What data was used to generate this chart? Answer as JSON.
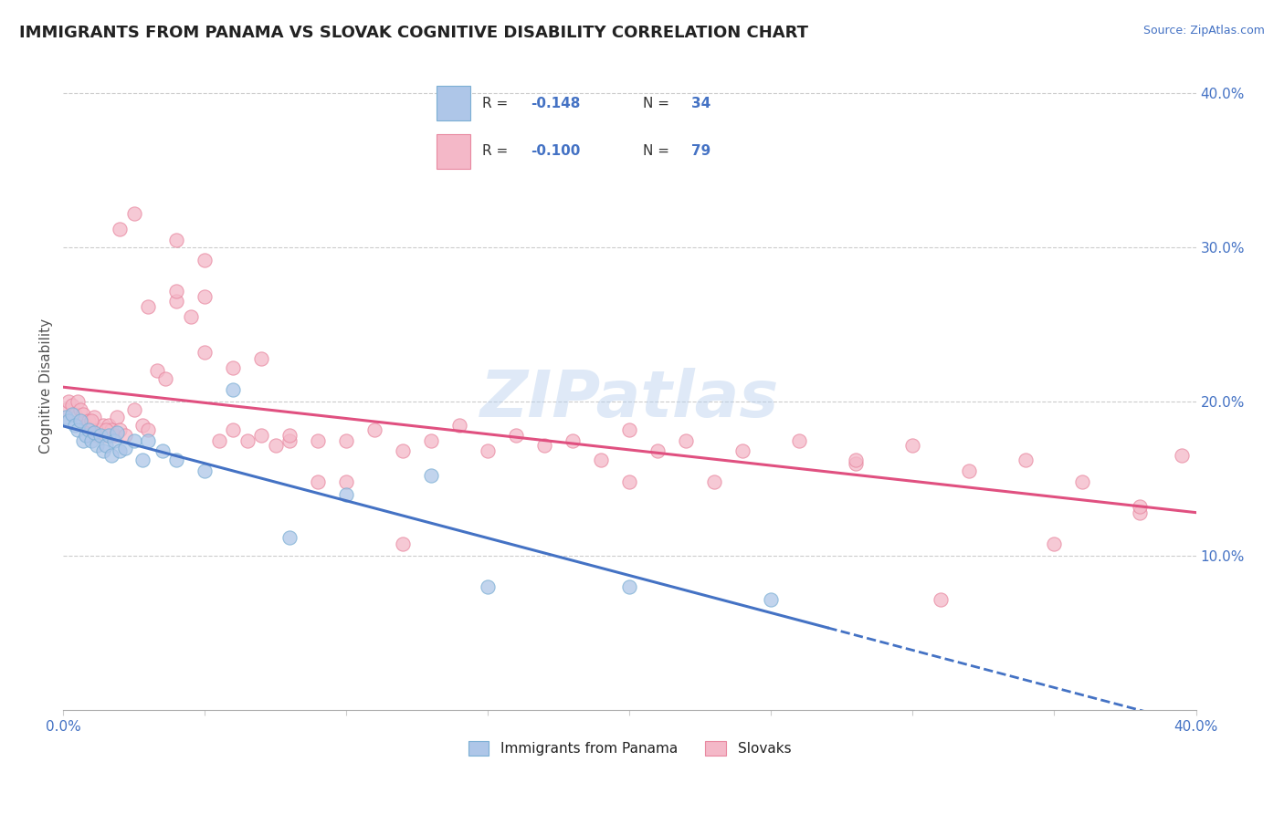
{
  "title": "IMMIGRANTS FROM PANAMA VS SLOVAK COGNITIVE DISABILITY CORRELATION CHART",
  "source": "Source: ZipAtlas.com",
  "ylabel": "Cognitive Disability",
  "xlim": [
    0.0,
    0.4
  ],
  "ylim": [
    0.0,
    0.42
  ],
  "x_tick_positions": [
    0.0,
    0.05,
    0.1,
    0.15,
    0.2,
    0.25,
    0.3,
    0.35,
    0.4
  ],
  "y_ticks_right": [
    0.1,
    0.2,
    0.3,
    0.4
  ],
  "y_tick_labels_right": [
    "10.0%",
    "20.0%",
    "30.0%",
    "40.0%"
  ],
  "r_panama": -0.148,
  "n_panama": 34,
  "r_slovak": -0.1,
  "n_slovak": 79,
  "color_panama_fill": "#aec6e8",
  "color_panama_edge": "#7bafd4",
  "color_slovak_fill": "#f4b8c8",
  "color_slovak_edge": "#e888a0",
  "color_line_panama": "#4472C4",
  "color_line_slovak": "#e05080",
  "color_text": "#4472C4",
  "watermark": "ZIPatlas",
  "panama_x": [
    0.001,
    0.002,
    0.003,
    0.004,
    0.005,
    0.006,
    0.007,
    0.008,
    0.009,
    0.01,
    0.011,
    0.012,
    0.013,
    0.014,
    0.015,
    0.016,
    0.017,
    0.018,
    0.019,
    0.02,
    0.022,
    0.025,
    0.028,
    0.03,
    0.035,
    0.04,
    0.05,
    0.06,
    0.08,
    0.1,
    0.13,
    0.15,
    0.2,
    0.25
  ],
  "panama_y": [
    0.19,
    0.188,
    0.192,
    0.185,
    0.182,
    0.188,
    0.175,
    0.178,
    0.182,
    0.175,
    0.18,
    0.172,
    0.178,
    0.168,
    0.172,
    0.178,
    0.165,
    0.175,
    0.18,
    0.168,
    0.17,
    0.175,
    0.162,
    0.175,
    0.168,
    0.162,
    0.155,
    0.208,
    0.112,
    0.14,
    0.152,
    0.08,
    0.08,
    0.072
  ],
  "slovak_x": [
    0.001,
    0.002,
    0.003,
    0.004,
    0.005,
    0.006,
    0.007,
    0.008,
    0.009,
    0.01,
    0.011,
    0.012,
    0.013,
    0.014,
    0.015,
    0.016,
    0.017,
    0.018,
    0.019,
    0.02,
    0.022,
    0.025,
    0.028,
    0.03,
    0.033,
    0.036,
    0.04,
    0.045,
    0.05,
    0.055,
    0.06,
    0.065,
    0.07,
    0.075,
    0.08,
    0.09,
    0.1,
    0.11,
    0.12,
    0.13,
    0.14,
    0.15,
    0.16,
    0.17,
    0.18,
    0.19,
    0.2,
    0.21,
    0.22,
    0.23,
    0.24,
    0.26,
    0.28,
    0.3,
    0.32,
    0.34,
    0.36,
    0.38,
    0.395,
    0.01,
    0.015,
    0.02,
    0.025,
    0.03,
    0.04,
    0.05,
    0.06,
    0.07,
    0.08,
    0.09,
    0.1,
    0.12,
    0.2,
    0.28,
    0.35,
    0.38,
    0.04,
    0.05,
    0.31
  ],
  "slovak_y": [
    0.195,
    0.2,
    0.198,
    0.192,
    0.2,
    0.195,
    0.192,
    0.185,
    0.188,
    0.182,
    0.19,
    0.178,
    0.182,
    0.185,
    0.178,
    0.185,
    0.182,
    0.178,
    0.19,
    0.182,
    0.178,
    0.195,
    0.185,
    0.182,
    0.22,
    0.215,
    0.265,
    0.255,
    0.268,
    0.175,
    0.182,
    0.175,
    0.178,
    0.172,
    0.175,
    0.175,
    0.175,
    0.182,
    0.168,
    0.175,
    0.185,
    0.168,
    0.178,
    0.172,
    0.175,
    0.162,
    0.182,
    0.168,
    0.175,
    0.148,
    0.168,
    0.175,
    0.16,
    0.172,
    0.155,
    0.162,
    0.148,
    0.128,
    0.165,
    0.188,
    0.182,
    0.312,
    0.322,
    0.262,
    0.272,
    0.232,
    0.222,
    0.228,
    0.178,
    0.148,
    0.148,
    0.108,
    0.148,
    0.162,
    0.108,
    0.132,
    0.305,
    0.292,
    0.072
  ]
}
